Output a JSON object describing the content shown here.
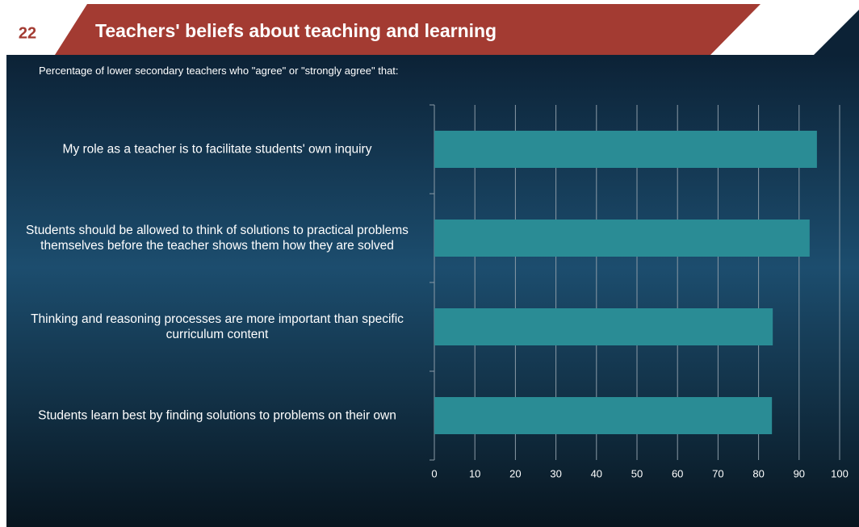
{
  "slide": {
    "number": "22"
  },
  "chart_data": {
    "type": "barh",
    "title": "Teachers' beliefs about teaching and learning",
    "subtitle": "Percentage of lower secondary teachers who \"agree\" or \"strongly agree\" that:",
    "categories": [
      "My role as a teacher is to facilitate students' own inquiry",
      "Students should be allowed to think of solutions to practical problems themselves before the teacher shows them how they are solved",
      "Thinking and reasoning processes are more important than specific curriculum content",
      "Students learn best by finding solutions to problems on their own"
    ],
    "values": [
      94.4,
      92.6,
      83.5,
      83.3
    ],
    "color": "#2a8c95",
    "xlim": [
      0,
      100
    ],
    "xticks": [
      0,
      10,
      20,
      30,
      40,
      50,
      60,
      70,
      80,
      90,
      100
    ],
    "grid": true
  }
}
